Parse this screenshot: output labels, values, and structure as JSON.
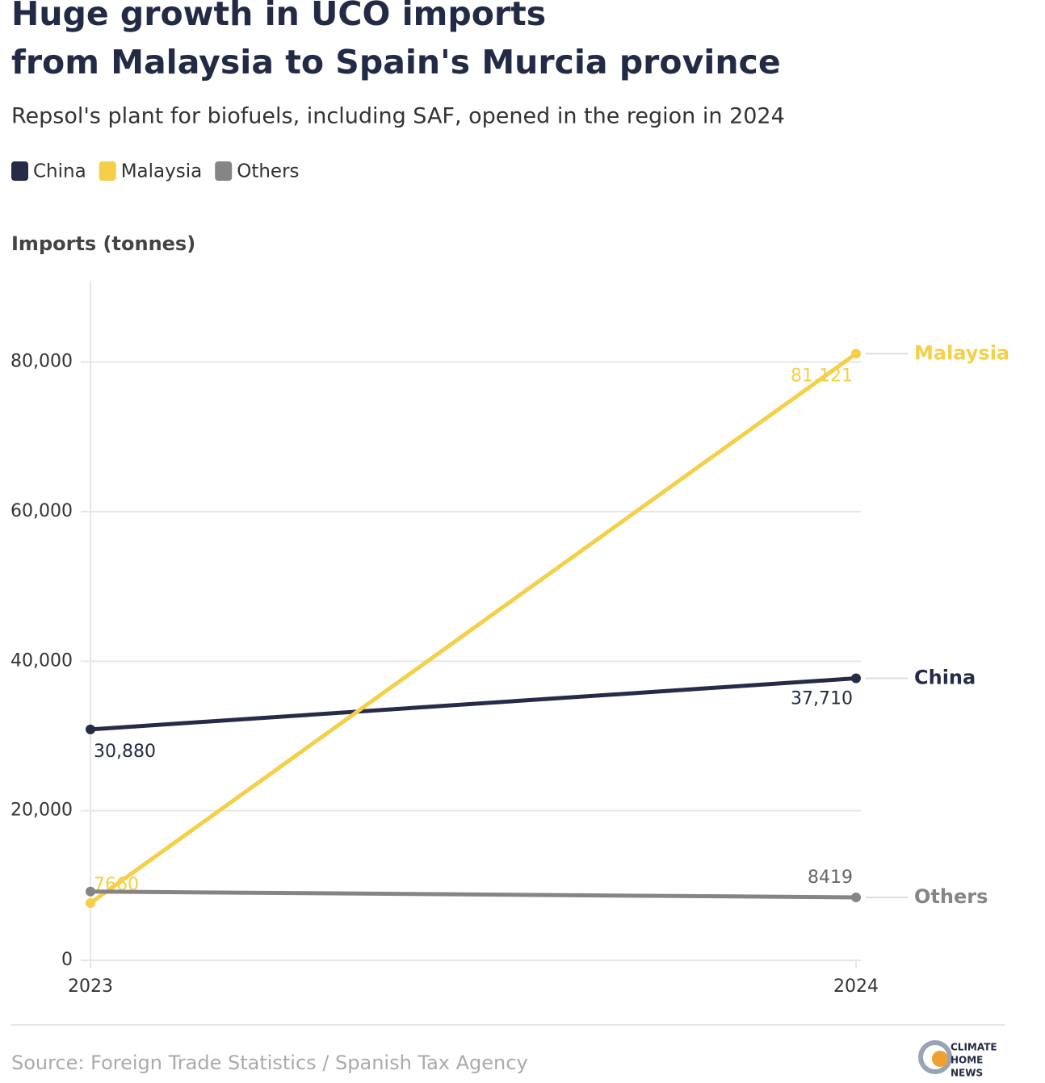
{
  "chart_data": {
    "type": "line",
    "title": [
      "Huge growth in UCO imports",
      "from Malaysia to Spain's Murcia province"
    ],
    "subtitle": "Repsol's plant for biofuels, including SAF, opened in the region in 2024",
    "y_label": "Imports (tonnes)",
    "categories": [
      "2023",
      "2024"
    ],
    "series": [
      {
        "name": "China",
        "color": "#262b47",
        "values": [
          30880,
          37710
        ],
        "value_labels": [
          "30,880",
          "37,710"
        ]
      },
      {
        "name": "Malaysia",
        "color": "#f5cf47",
        "values": [
          7660,
          81121
        ],
        "value_labels": [
          "7660",
          "81,121"
        ]
      },
      {
        "name": "Others",
        "color": "#858585",
        "values": [
          9200,
          8419
        ],
        "value_labels": [
          null,
          "8419"
        ]
      }
    ],
    "ylim": [
      0,
      90000
    ],
    "yticks": [
      0,
      {
        "value": 20000,
        "label": "20,000"
      },
      {
        "value": 40000,
        "label": "40,000"
      },
      {
        "value": 60000,
        "label": "60,000"
      },
      {
        "value": 80000,
        "label": "80,000"
      }
    ],
    "grid": true,
    "source": "Source: Foreign Trade Statistics / Spanish Tax Agency",
    "logo": [
      "CLIMATE",
      "HOME",
      "NEWS"
    ]
  }
}
